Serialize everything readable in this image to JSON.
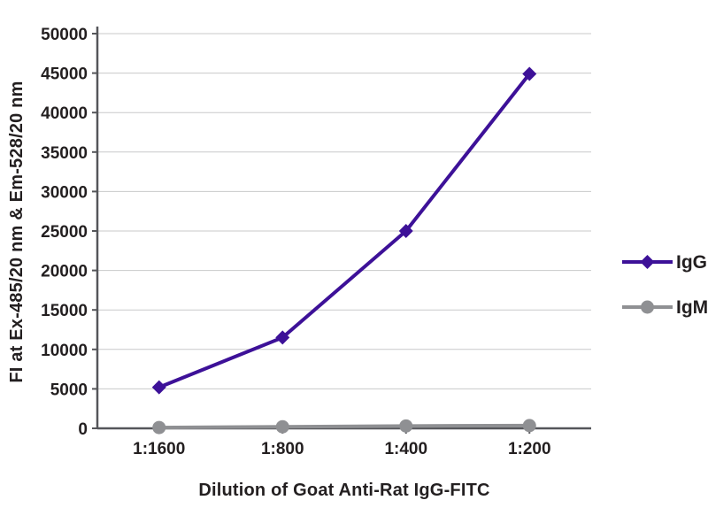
{
  "chart_data": {
    "type": "line",
    "title": "",
    "categories": [
      "1:1600",
      "1:800",
      "1:400",
      "1:200"
    ],
    "series": [
      {
        "name": "IgG",
        "color": "#3D1198",
        "marker": "diamond",
        "values": [
          5200,
          11500,
          25000,
          44900
        ]
      },
      {
        "name": "IgM",
        "color": "#8F9093",
        "marker": "circle",
        "values": [
          100,
          200,
          300,
          350
        ]
      }
    ],
    "xlabel": "Dilution of Goat Anti-Rat IgG-FITC",
    "ylabel": "FI at Ex-485/20 nm & Em-528/20 nm",
    "ylim": [
      0,
      50000
    ],
    "ytick_step": 5000,
    "grid": "horizontal",
    "gridline_color": "#c8c9ca",
    "axis_color": "#55565a",
    "text_color": "#231f20",
    "legend_position": "right"
  }
}
